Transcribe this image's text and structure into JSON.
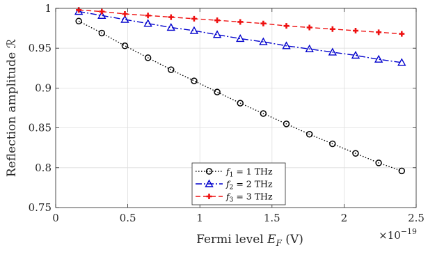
{
  "chart_data": {
    "type": "line",
    "xlabel": "Fermi level E_F (V)",
    "xlabel_parts": {
      "text": "Fermi level ",
      "var": "E",
      "sub": "F",
      "unit": " (V)"
    },
    "ylabel": "Reflection amplitude ℛ",
    "x_exponent_label": {
      "base": "×10",
      "exp": "−19"
    },
    "xlim": [
      0,
      2.5
    ],
    "ylim": [
      0.75,
      1.0
    ],
    "xticks": [
      0,
      0.5,
      1,
      1.5,
      2,
      2.5
    ],
    "xtick_labels": [
      "0",
      "0.5",
      "1",
      "1.5",
      "2",
      "2.5"
    ],
    "yticks": [
      0.75,
      0.8,
      0.85,
      0.9,
      0.95,
      1.0
    ],
    "ytick_labels": [
      "0.75",
      "0.8",
      "0.85",
      "0.9",
      "0.95",
      "1"
    ],
    "grid": true,
    "legend_position": "bottom-center",
    "x": [
      0.16,
      0.32,
      0.48,
      0.64,
      0.8,
      0.96,
      1.12,
      1.28,
      1.44,
      1.6,
      1.76,
      1.92,
      2.08,
      2.24,
      2.4
    ],
    "series": [
      {
        "name": "f1 = 1 THz",
        "label_parts": {
          "var": "f",
          "sub": "1",
          "rest": " = 1 THz"
        },
        "color": "#000000",
        "line_style": "dotted",
        "marker": "circle",
        "values": [
          0.984,
          0.969,
          0.953,
          0.938,
          0.923,
          0.909,
          0.895,
          0.881,
          0.868,
          0.855,
          0.842,
          0.83,
          0.818,
          0.806,
          0.796
        ]
      },
      {
        "name": "f2 = 2 THz",
        "label_parts": {
          "var": "f",
          "sub": "2",
          "rest": " = 2 THz"
        },
        "color": "#0000cc",
        "line_style": "dashdot",
        "marker": "triangle",
        "values": [
          0.996,
          0.991,
          0.986,
          0.981,
          0.976,
          0.972,
          0.967,
          0.962,
          0.958,
          0.953,
          0.949,
          0.945,
          0.941,
          0.936,
          0.932
        ]
      },
      {
        "name": "f3 = 3 THz",
        "label_parts": {
          "var": "f",
          "sub": "3",
          "rest": " = 3 THz"
        },
        "color": "#ee1111",
        "line_style": "dashed",
        "marker": "plus",
        "values": [
          0.998,
          0.996,
          0.993,
          0.991,
          0.989,
          0.987,
          0.985,
          0.983,
          0.981,
          0.978,
          0.976,
          0.974,
          0.972,
          0.97,
          0.968
        ]
      }
    ]
  }
}
